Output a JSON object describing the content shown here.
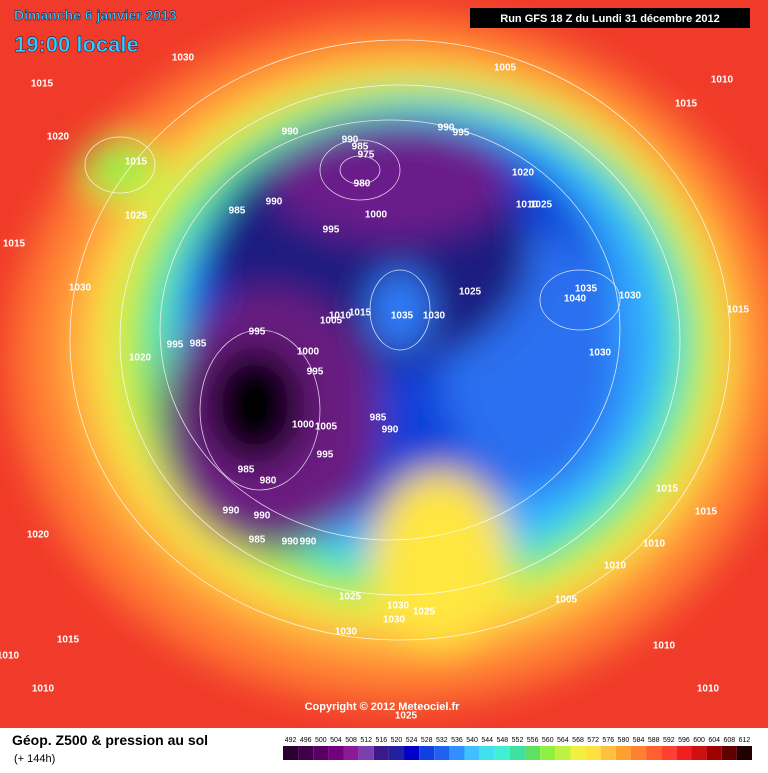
{
  "header": {
    "date": "Dimanche 6 janvier 2013",
    "time": "19:00 locale",
    "run": "Run GFS 18 Z du Lundi 31 décembre 2012"
  },
  "footer": {
    "copyright": "Copyright © 2012 Meteociel.fr",
    "variable": "Géop. Z500 & pression au sol",
    "lead": "(+ 144h)"
  },
  "isobar_labels": [
    1030,
    1005,
    1010,
    1015,
    1015,
    1020,
    990,
    990,
    985,
    975,
    990,
    995,
    1015,
    1020,
    980,
    1025,
    985,
    990,
    1010,
    1025,
    1000,
    995,
    1015,
    1025,
    1035,
    1040,
    1030,
    1030,
    1015,
    1035,
    1030,
    1010,
    1015,
    1005,
    995,
    995,
    985,
    1000,
    1020,
    1030,
    995,
    985,
    990,
    1000,
    1005,
    995,
    985,
    980,
    1015,
    990,
    990,
    1015,
    1020,
    985,
    990,
    990,
    1010,
    1010,
    1025,
    1005,
    1030,
    1030,
    1025,
    1030,
    1015,
    1010,
    1010,
    1010,
    1010,
    1025
  ],
  "colorbar": {
    "ticks": [
      492,
      496,
      500,
      504,
      508,
      512,
      516,
      520,
      524,
      528,
      532,
      536,
      540,
      544,
      548,
      552,
      556,
      560,
      564,
      568,
      572,
      576,
      580,
      584,
      588,
      592,
      596,
      600,
      604,
      608,
      612
    ],
    "colors": [
      "#2a0030",
      "#40004a",
      "#5a0064",
      "#73007d",
      "#8c1a96",
      "#7a40b0",
      "#3a1a8a",
      "#2020a0",
      "#0000c8",
      "#1040e0",
      "#2060f0",
      "#3090ff",
      "#40c0ff",
      "#40e0f0",
      "#40f0d0",
      "#40e0a0",
      "#60e060",
      "#90f040",
      "#c0f040",
      "#f0f040",
      "#ffe040",
      "#ffc040",
      "#ffa030",
      "#ff8030",
      "#ff6030",
      "#ff4030",
      "#f02020",
      "#d01010",
      "#a00000",
      "#600000",
      "#200000"
    ]
  }
}
